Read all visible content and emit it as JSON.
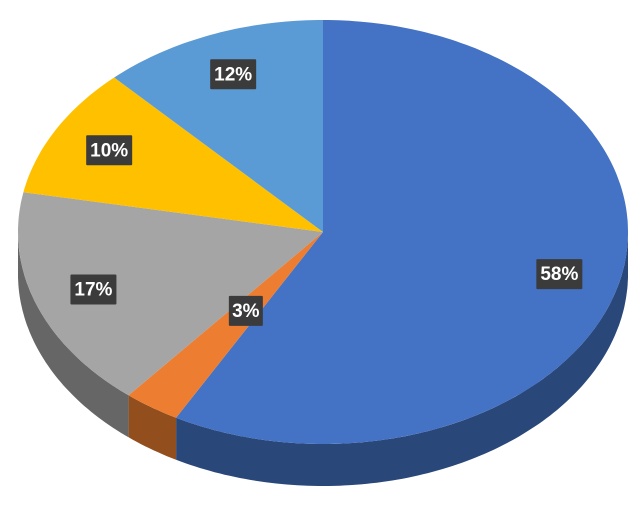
{
  "chart_data": {
    "type": "pie",
    "values": [
      58,
      3,
      17,
      10,
      12
    ],
    "value_labels": [
      "58%",
      "3%",
      "17%",
      "10%",
      "12%"
    ],
    "colors": [
      "#4472c4",
      "#ed7d31",
      "#a5a5a5",
      "#ffc000",
      "#5b9bd5"
    ]
  }
}
